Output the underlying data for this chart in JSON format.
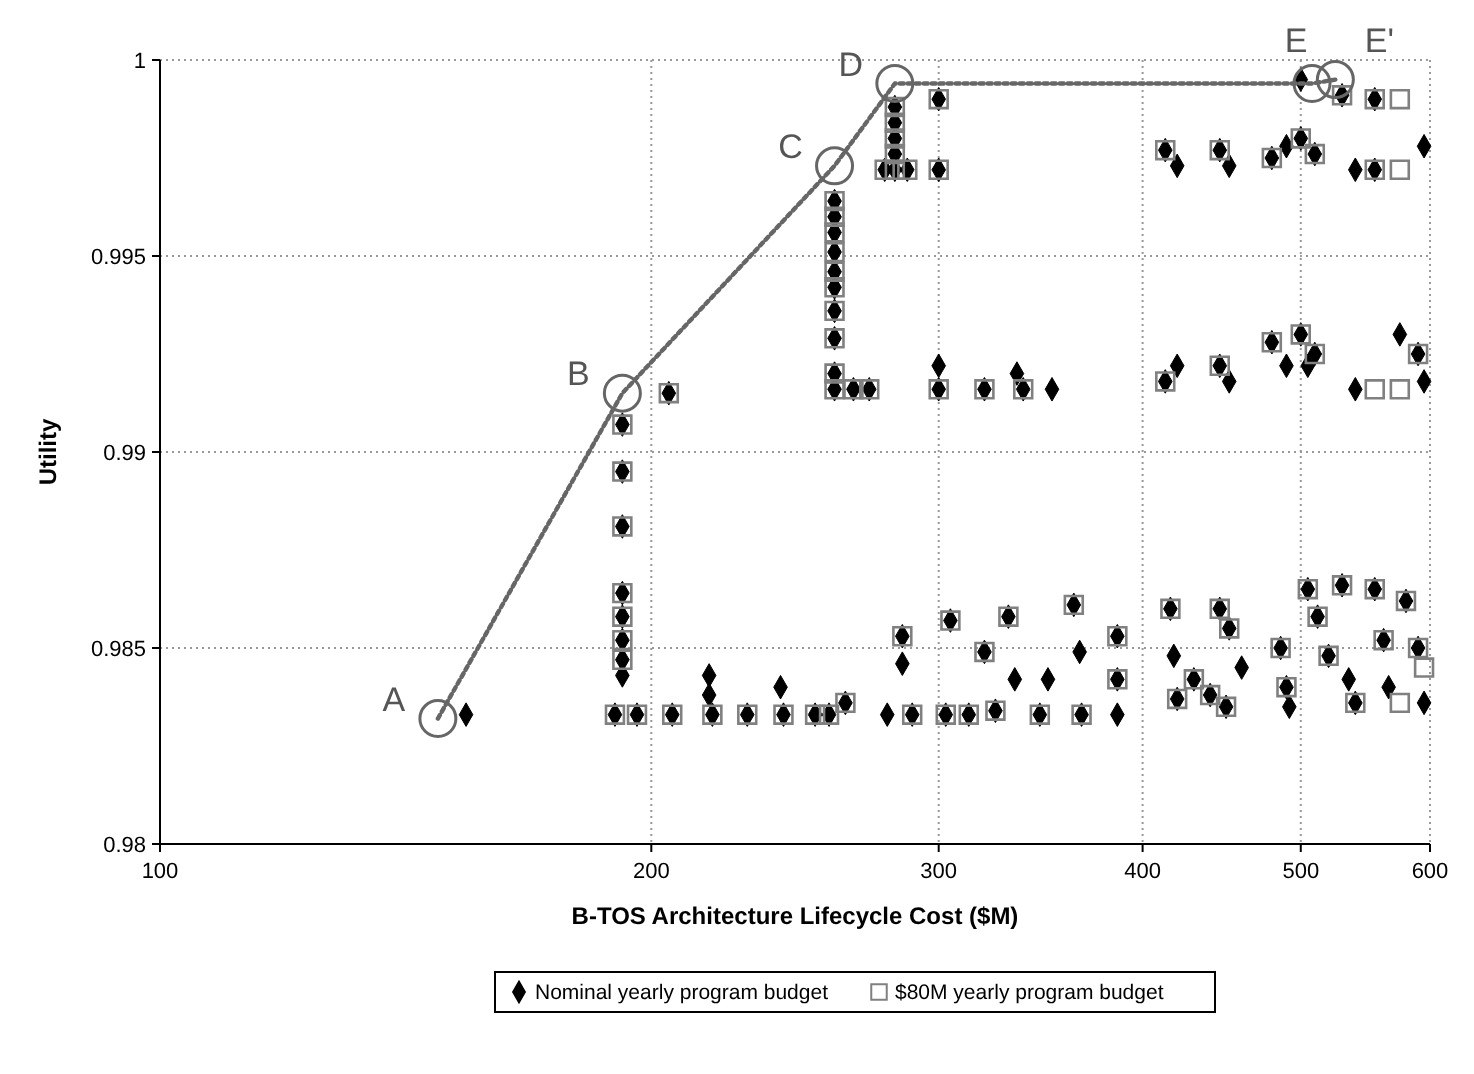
{
  "chart_data": {
    "type": "scatter",
    "xlabel": "B-TOS Architecture Lifecycle Cost ($M)",
    "ylabel": "Utility",
    "log": "x",
    "xlim": [
      100,
      600
    ],
    "xticks": [
      100,
      200,
      300,
      400,
      500,
      600
    ],
    "ylim": [
      0.98,
      1
    ],
    "yticks": [
      0.98,
      0.985,
      0.99,
      0.995,
      1
    ],
    "grid": true,
    "legend": "bottom",
    "series": [
      {
        "name": "Nominal yearly program budget",
        "color": "#000000",
        "marker": "diamond",
        "x": [
          154,
          192,
          192,
          192,
          192,
          192,
          192,
          192,
          192,
          190,
          196,
          205,
          206,
          217,
          217,
          218,
          229,
          240,
          241,
          252,
          257,
          259,
          259,
          259,
          259,
          259,
          259,
          259,
          259,
          259,
          259,
          266,
          272,
          282,
          282,
          282,
          282,
          282,
          278,
          287,
          300,
          300,
          300,
          300,
          320,
          335,
          338,
          352,
          263,
          279,
          289,
          285,
          285,
          303,
          313,
          305,
          320,
          325,
          331,
          334,
          346,
          350,
          363,
          366,
          367,
          386,
          386,
          386,
          416,
          418,
          420,
          430,
          440,
          450,
          446,
          452,
          460,
          486,
          490,
          492,
          505,
          512,
          520,
          530,
          535,
          540,
          555,
          562,
          566,
          580,
          590,
          595,
          413,
          420,
          446,
          452,
          480,
          490,
          500,
          505,
          510,
          540,
          575,
          590,
          595,
          413,
          420,
          446,
          452,
          480,
          490,
          500,
          510,
          540,
          555,
          595,
          500,
          530,
          555
        ],
        "values": [
          0.9833,
          0.9907,
          0.9895,
          0.9881,
          0.9864,
          0.9858,
          0.9852,
          0.9847,
          0.9843,
          0.9833,
          0.9833,
          0.9915,
          0.9833,
          0.9843,
          0.9838,
          0.9833,
          0.9833,
          0.984,
          0.9833,
          0.9833,
          0.9833,
          0.9964,
          0.996,
          0.9956,
          0.9951,
          0.9946,
          0.9942,
          0.9936,
          0.9929,
          0.992,
          0.9916,
          0.9916,
          0.9916,
          0.9988,
          0.9984,
          0.998,
          0.9976,
          0.9972,
          0.9972,
          0.9972,
          0.999,
          0.9972,
          0.9922,
          0.9916,
          0.9916,
          0.992,
          0.9916,
          0.9916,
          0.9836,
          0.9833,
          0.9833,
          0.9853,
          0.9846,
          0.9833,
          0.9833,
          0.9857,
          0.9849,
          0.9834,
          0.9858,
          0.9842,
          0.9833,
          0.9842,
          0.9861,
          0.9849,
          0.9833,
          0.9853,
          0.9842,
          0.9833,
          0.986,
          0.9848,
          0.9837,
          0.9842,
          0.9838,
          0.9835,
          0.986,
          0.9855,
          0.9845,
          0.985,
          0.984,
          0.9835,
          0.9865,
          0.9858,
          0.9848,
          0.9866,
          0.9842,
          0.9836,
          0.9865,
          0.9852,
          0.984,
          0.9862,
          0.985,
          0.9836,
          0.9918,
          0.9922,
          0.9922,
          0.9918,
          0.9928,
          0.9922,
          0.993,
          0.9922,
          0.9925,
          0.9916,
          0.993,
          0.9925,
          0.9918,
          0.9977,
          0.9973,
          0.9977,
          0.9973,
          0.9975,
          0.9978,
          0.998,
          0.9976,
          0.9972,
          0.9972,
          0.9978,
          0.9995,
          0.9991,
          0.999
        ]
      },
      {
        "name": "$80M yearly program budget",
        "color": "#808080",
        "marker": "square",
        "x": [
          192,
          192,
          192,
          192,
          192,
          192,
          192,
          190,
          196,
          205,
          206,
          218,
          229,
          241,
          252,
          257,
          259,
          259,
          259,
          259,
          259,
          259,
          259,
          259,
          259,
          259,
          266,
          272,
          282,
          282,
          282,
          282,
          282,
          278,
          287,
          300,
          300,
          300,
          320,
          338,
          263,
          289,
          285,
          303,
          313,
          305,
          320,
          325,
          331,
          346,
          363,
          367,
          386,
          386,
          416,
          420,
          430,
          440,
          450,
          446,
          452,
          486,
          490,
          505,
          512,
          520,
          530,
          540,
          555,
          562,
          575,
          580,
          590,
          595,
          413,
          446,
          480,
          500,
          510,
          555,
          575,
          590,
          413,
          446,
          480,
          500,
          510,
          555,
          575,
          530,
          555,
          575
        ],
        "values": [
          0.9907,
          0.9895,
          0.9881,
          0.9864,
          0.9858,
          0.9852,
          0.9847,
          0.9833,
          0.9833,
          0.9915,
          0.9833,
          0.9833,
          0.9833,
          0.9833,
          0.9833,
          0.9833,
          0.9964,
          0.996,
          0.9956,
          0.9951,
          0.9946,
          0.9942,
          0.9936,
          0.9929,
          0.992,
          0.9916,
          0.9916,
          0.9916,
          0.9988,
          0.9984,
          0.998,
          0.9976,
          0.9972,
          0.9972,
          0.9972,
          0.999,
          0.9972,
          0.9916,
          0.9916,
          0.9916,
          0.9836,
          0.9833,
          0.9853,
          0.9833,
          0.9833,
          0.9857,
          0.9849,
          0.9834,
          0.9858,
          0.9833,
          0.9861,
          0.9833,
          0.9853,
          0.9842,
          0.986,
          0.9837,
          0.9842,
          0.9838,
          0.9835,
          0.986,
          0.9855,
          0.985,
          0.984,
          0.9865,
          0.9858,
          0.9848,
          0.9866,
          0.9836,
          0.9865,
          0.9852,
          0.9836,
          0.9862,
          0.985,
          0.9845,
          0.9918,
          0.9922,
          0.9928,
          0.993,
          0.9925,
          0.9916,
          0.9916,
          0.9925,
          0.9977,
          0.9977,
          0.9975,
          0.998,
          0.9976,
          0.9972,
          0.9972,
          0.9991,
          0.999,
          0.999
        ]
      },
      {
        "type": "line",
        "color": "#666666",
        "line_style": "dotted",
        "marker": "circle",
        "x": [
          148,
          192,
          259,
          282,
          508,
          525
        ],
        "values": [
          0.9832,
          0.9915,
          0.9973,
          0.9994,
          0.9994,
          0.9995
        ]
      }
    ],
    "annotations": [
      {
        "text": "A",
        "x": 148,
        "y": 0.9832
      },
      {
        "text": "B",
        "x": 192,
        "y": 0.9915
      },
      {
        "text": "C",
        "x": 259,
        "y": 0.9973
      },
      {
        "text": "D",
        "x": 282,
        "y": 0.9994
      },
      {
        "text": "E",
        "x": 508,
        "y": 0.9994
      },
      {
        "text": "E'",
        "x": 525,
        "y": 0.9994
      }
    ]
  }
}
